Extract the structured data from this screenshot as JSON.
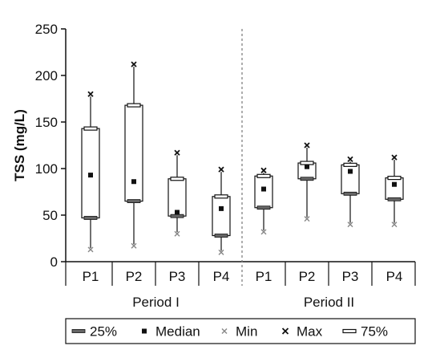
{
  "chart_data": {
    "type": "box",
    "ylabel": "TSS (mg/L)",
    "xlabel": "",
    "ylim": [
      0,
      250
    ],
    "yticks": [
      0,
      50,
      100,
      150,
      200,
      250
    ],
    "groups": [
      {
        "label": "Period I",
        "boxes": [
          {
            "label": "P1",
            "min": 13,
            "q1": 47,
            "median": 93,
            "q3": 143,
            "max": 180
          },
          {
            "label": "P2",
            "min": 17,
            "q1": 65,
            "median": 86,
            "q3": 168,
            "max": 212
          },
          {
            "label": "P3",
            "min": 30,
            "q1": 49,
            "median": 53,
            "q3": 89,
            "max": 117
          },
          {
            "label": "P4",
            "min": 10,
            "q1": 28,
            "median": 57,
            "q3": 70,
            "max": 99
          }
        ]
      },
      {
        "label": "Period II",
        "boxes": [
          {
            "label": "P1",
            "min": 32,
            "q1": 58,
            "median": 78,
            "q3": 92,
            "max": 98
          },
          {
            "label": "P2",
            "min": 46,
            "q1": 89,
            "median": 102,
            "q3": 106,
            "max": 125
          },
          {
            "label": "P3",
            "min": 40,
            "q1": 73,
            "median": 97,
            "q3": 104,
            "max": 110
          },
          {
            "label": "P4",
            "min": 40,
            "q1": 67,
            "median": 83,
            "q3": 90,
            "max": 112
          }
        ]
      }
    ],
    "legend": {
      "placement": "bottom",
      "items": [
        {
          "key": "q1",
          "label": "25%"
        },
        {
          "key": "median",
          "label": "Median"
        },
        {
          "key": "min",
          "label": "Min"
        },
        {
          "key": "max",
          "label": "Max"
        },
        {
          "key": "q3",
          "label": "75%"
        }
      ]
    },
    "colors": {
      "axis": "#111111",
      "box": "#111111",
      "min_marker": "#888888",
      "q1_marker": "#666666",
      "separator": "#777777"
    }
  }
}
